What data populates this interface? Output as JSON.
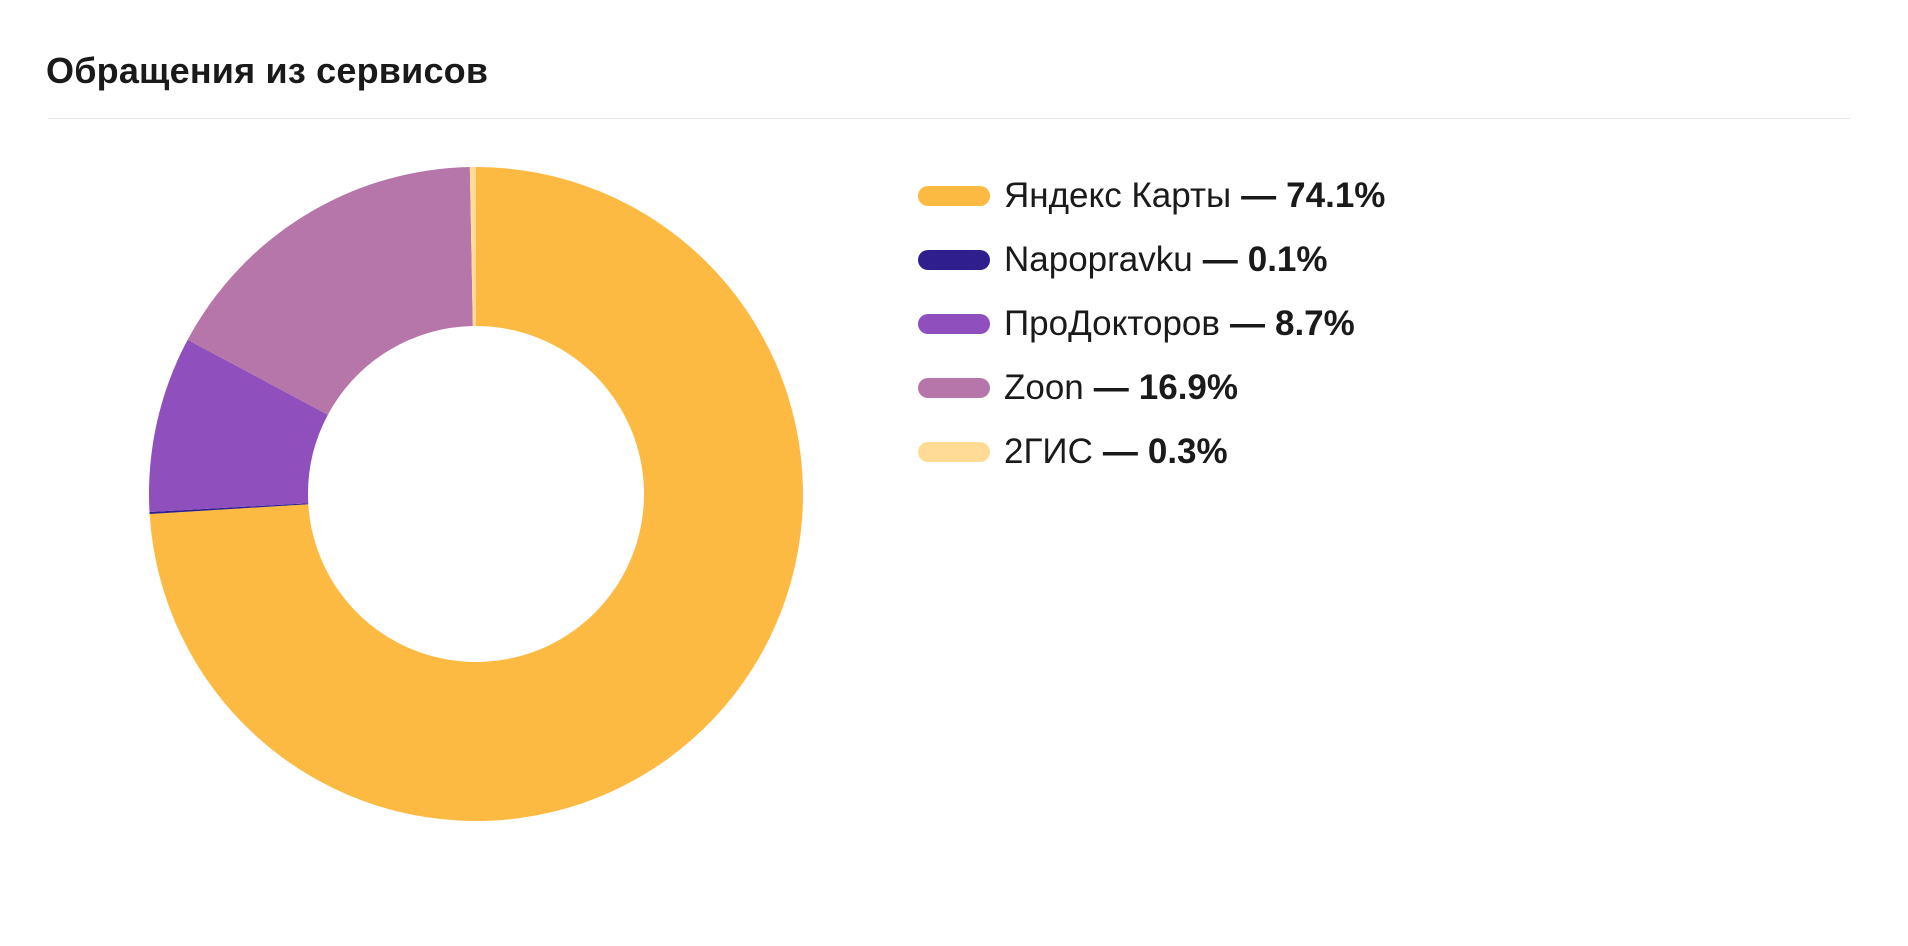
{
  "header": {
    "title": "Обращения из сервисов"
  },
  "chart_data": {
    "type": "pie",
    "donut": true,
    "title": "Обращения из сервисов",
    "legend_position": "right",
    "separator": "—",
    "series": [
      {
        "name": "Яндекс Карты",
        "value": 74.1,
        "label": "74.1%",
        "color": "#FDBA42"
      },
      {
        "name": "Napopravku",
        "value": 0.1,
        "label": "0.1%",
        "color": "#2F1E8E"
      },
      {
        "name": "ПроДокторов",
        "value": 8.7,
        "label": "8.7%",
        "color": "#8F4FBC"
      },
      {
        "name": "Zoon",
        "value": 16.9,
        "label": "16.9%",
        "color": "#B776AA"
      },
      {
        "name": "2ГИС",
        "value": 0.3,
        "label": "0.3%",
        "color": "#FFDB95"
      }
    ]
  }
}
